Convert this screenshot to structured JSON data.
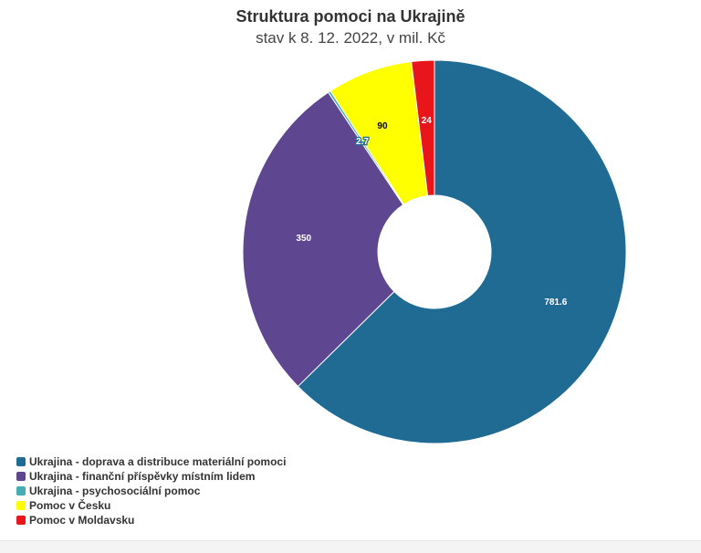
{
  "chart_data": {
    "type": "pie",
    "title": "Struktura pomoci na Ukrajině",
    "subtitle": "stav k 8. 12. 2022, v mil. Kč",
    "donut": true,
    "legend_position": "bottom-left",
    "slices": [
      {
        "label": "Ukrajina - doprava a distribuce materiální pomoci",
        "value": 781.6,
        "display": "781.6",
        "color": "#1f6b94"
      },
      {
        "label": "Ukrajina - finanční příspěvky místním lidem",
        "value": 350,
        "display": "350",
        "color": "#5e4790"
      },
      {
        "label": "Ukrajina - psychosociální pomoc",
        "value": 2.7,
        "display": "2.7",
        "color": "#46aeb2"
      },
      {
        "label": "Pomoc v Česku",
        "value": 90,
        "display": "90",
        "color": "#ffff00"
      },
      {
        "label": "Pomoc v Moldavsku",
        "value": 24,
        "display": "24",
        "color": "#e8151b"
      }
    ]
  }
}
